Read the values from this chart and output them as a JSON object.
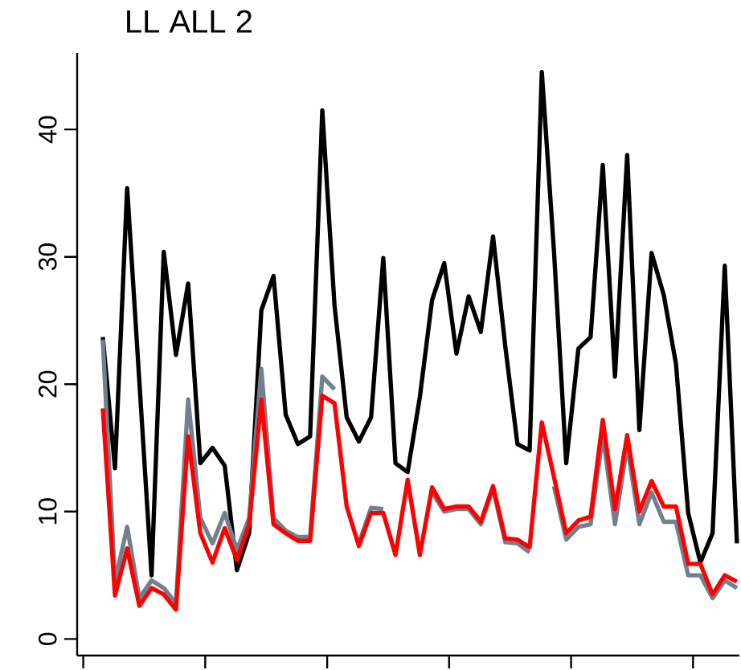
{
  "chart_data": {
    "type": "line",
    "title": "LL ALL 2",
    "categories": [
      null,
      null,
      null,
      null,
      null,
      null,
      null,
      null,
      null,
      null,
      null,
      null,
      null,
      null,
      null,
      null,
      null,
      null,
      null,
      null,
      null,
      null,
      null,
      null,
      null,
      null,
      null,
      null,
      null,
      null,
      null,
      null,
      null,
      null,
      null,
      null,
      null,
      null,
      null,
      null,
      null,
      null,
      null,
      null,
      null,
      null,
      null,
      null,
      null,
      null,
      null,
      null,
      null
    ],
    "series": [
      {
        "color": "#000000",
        "values": [
          23.7,
          13.4,
          35.4,
          20.2,
          5.0,
          30.4,
          22.3,
          27.9,
          13.8,
          15.0,
          13.6,
          5.4,
          8.3,
          25.8,
          28.5,
          17.6,
          15.3,
          15.9,
          41.5,
          26.2,
          17.4,
          15.5,
          17.4,
          29.9,
          13.8,
          13.1,
          19.0,
          26.6,
          29.5,
          22.4,
          26.9,
          24.1,
          31.6,
          23.0,
          15.3,
          14.8,
          44.5,
          30.4,
          13.8,
          22.8,
          23.7,
          37.2,
          20.6,
          38.0,
          16.4,
          30.3,
          27.0,
          21.6,
          9.9,
          6.0,
          8.3,
          29.3,
          7.5
        ]
      },
      {
        "color": "#708090",
        "values": [
          23.5,
          4.5,
          8.8,
          3.2,
          4.6,
          4.0,
          2.8,
          18.8,
          9.5,
          7.5,
          9.9,
          7.0,
          9.5,
          21.2,
          9.5,
          8.5,
          8.0,
          8.0,
          20.6,
          19.6,
          null,
          7.5,
          10.3,
          10.2,
          null,
          null,
          null,
          11.5,
          10.0,
          10.2,
          10.2,
          9.0,
          11.8,
          7.6,
          7.5,
          6.8,
          null,
          12.0,
          7.8,
          8.8,
          9.0,
          16.0,
          9.0,
          15.2,
          9.0,
          11.5,
          9.2,
          9.2,
          5.0,
          5.0,
          3.2,
          4.6,
          4.0
        ]
      },
      {
        "color": "#ff0000",
        "values": [
          18.1,
          3.4,
          7.1,
          2.6,
          4.0,
          3.5,
          2.3,
          15.9,
          8.3,
          6.0,
          8.7,
          6.2,
          9.0,
          18.8,
          9.0,
          8.3,
          7.7,
          7.7,
          19.1,
          18.5,
          10.4,
          7.3,
          9.9,
          9.9,
          6.6,
          12.5,
          6.6,
          11.9,
          10.2,
          10.4,
          10.4,
          9.2,
          12.0,
          7.9,
          7.8,
          7.2,
          17.0,
          12.7,
          8.3,
          9.3,
          9.6,
          17.2,
          10.2,
          16.0,
          10.0,
          12.4,
          10.4,
          10.4,
          5.9,
          5.9,
          3.5,
          5.0,
          4.5
        ]
      }
    ],
    "ylim": [
      -1.3,
      46
    ],
    "yticks": [
      0,
      10,
      20,
      30,
      40
    ]
  }
}
